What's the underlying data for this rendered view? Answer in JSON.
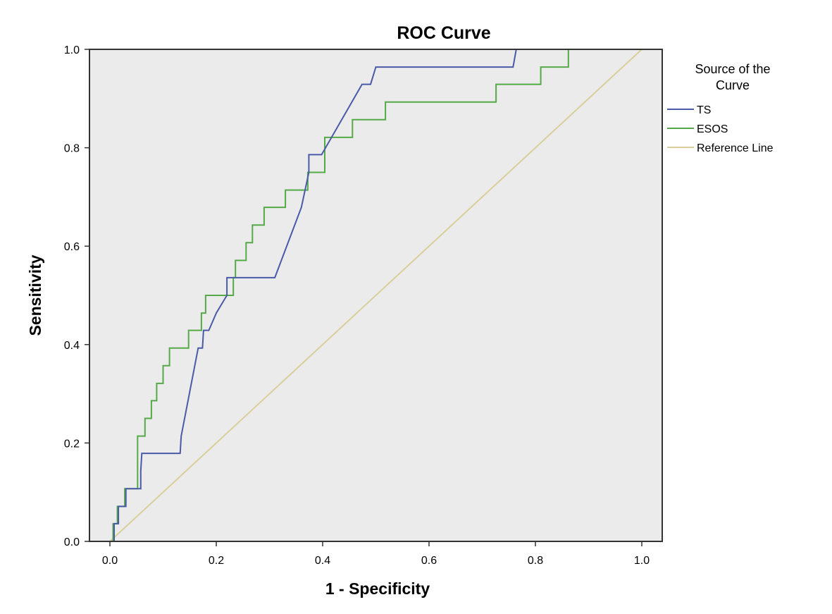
{
  "chart_data": {
    "type": "line",
    "title": "ROC Curve",
    "xlabel": "1 - Specificity",
    "ylabel": "Sensitivity",
    "xlim": [
      0,
      1
    ],
    "ylim": [
      0,
      1
    ],
    "xticks": [
      "0.0",
      "0.2",
      "0.4",
      "0.6",
      "0.8",
      "1.0"
    ],
    "yticks": [
      "0.0",
      "0.2",
      "0.4",
      "0.6",
      "0.8",
      "1.0"
    ],
    "grid": false,
    "background": "#ebebeb",
    "legend": {
      "title_lines": [
        "Source of the",
        "Curve"
      ],
      "placement": "right"
    },
    "series": [
      {
        "name": "TS",
        "color": "#4a5aa8",
        "points": [
          [
            0.0,
            0.0
          ],
          [
            0.008,
            0.0
          ],
          [
            0.008,
            0.036
          ],
          [
            0.016,
            0.036
          ],
          [
            0.016,
            0.071
          ],
          [
            0.03,
            0.071
          ],
          [
            0.03,
            0.107
          ],
          [
            0.058,
            0.107
          ],
          [
            0.058,
            0.143
          ],
          [
            0.06,
            0.179
          ],
          [
            0.132,
            0.179
          ],
          [
            0.134,
            0.214
          ],
          [
            0.166,
            0.393
          ],
          [
            0.174,
            0.393
          ],
          [
            0.176,
            0.429
          ],
          [
            0.186,
            0.429
          ],
          [
            0.2,
            0.464
          ],
          [
            0.22,
            0.5
          ],
          [
            0.22,
            0.536
          ],
          [
            0.31,
            0.536
          ],
          [
            0.36,
            0.679
          ],
          [
            0.374,
            0.75
          ],
          [
            0.374,
            0.786
          ],
          [
            0.398,
            0.786
          ],
          [
            0.474,
            0.929
          ],
          [
            0.49,
            0.929
          ],
          [
            0.5,
            0.964
          ],
          [
            0.758,
            0.964
          ],
          [
            0.764,
            1.0
          ],
          [
            1.0,
            1.0
          ]
        ]
      },
      {
        "name": "ESOS",
        "color": "#55aa48",
        "points": [
          [
            0.0,
            0.0
          ],
          [
            0.006,
            0.0
          ],
          [
            0.006,
            0.036
          ],
          [
            0.014,
            0.036
          ],
          [
            0.014,
            0.071
          ],
          [
            0.028,
            0.071
          ],
          [
            0.028,
            0.107
          ],
          [
            0.052,
            0.107
          ],
          [
            0.052,
            0.214
          ],
          [
            0.066,
            0.214
          ],
          [
            0.066,
            0.25
          ],
          [
            0.078,
            0.25
          ],
          [
            0.078,
            0.286
          ],
          [
            0.088,
            0.286
          ],
          [
            0.088,
            0.321
          ],
          [
            0.1,
            0.321
          ],
          [
            0.1,
            0.357
          ],
          [
            0.112,
            0.357
          ],
          [
            0.112,
            0.393
          ],
          [
            0.148,
            0.393
          ],
          [
            0.148,
            0.429
          ],
          [
            0.172,
            0.429
          ],
          [
            0.172,
            0.464
          ],
          [
            0.18,
            0.464
          ],
          [
            0.18,
            0.5
          ],
          [
            0.232,
            0.5
          ],
          [
            0.232,
            0.536
          ],
          [
            0.236,
            0.536
          ],
          [
            0.236,
            0.571
          ],
          [
            0.256,
            0.571
          ],
          [
            0.256,
            0.607
          ],
          [
            0.268,
            0.607
          ],
          [
            0.268,
            0.643
          ],
          [
            0.29,
            0.643
          ],
          [
            0.29,
            0.679
          ],
          [
            0.33,
            0.679
          ],
          [
            0.33,
            0.714
          ],
          [
            0.372,
            0.714
          ],
          [
            0.372,
            0.75
          ],
          [
            0.404,
            0.75
          ],
          [
            0.404,
            0.821
          ],
          [
            0.456,
            0.821
          ],
          [
            0.456,
            0.857
          ],
          [
            0.518,
            0.857
          ],
          [
            0.518,
            0.893
          ],
          [
            0.726,
            0.893
          ],
          [
            0.726,
            0.929
          ],
          [
            0.81,
            0.929
          ],
          [
            0.81,
            0.964
          ],
          [
            0.862,
            0.964
          ],
          [
            0.862,
            1.0
          ],
          [
            1.0,
            1.0
          ]
        ]
      },
      {
        "name": "Reference Line",
        "color": "#d8cf9a",
        "points": [
          [
            0.0,
            0.0
          ],
          [
            1.0,
            1.0
          ]
        ]
      }
    ]
  }
}
